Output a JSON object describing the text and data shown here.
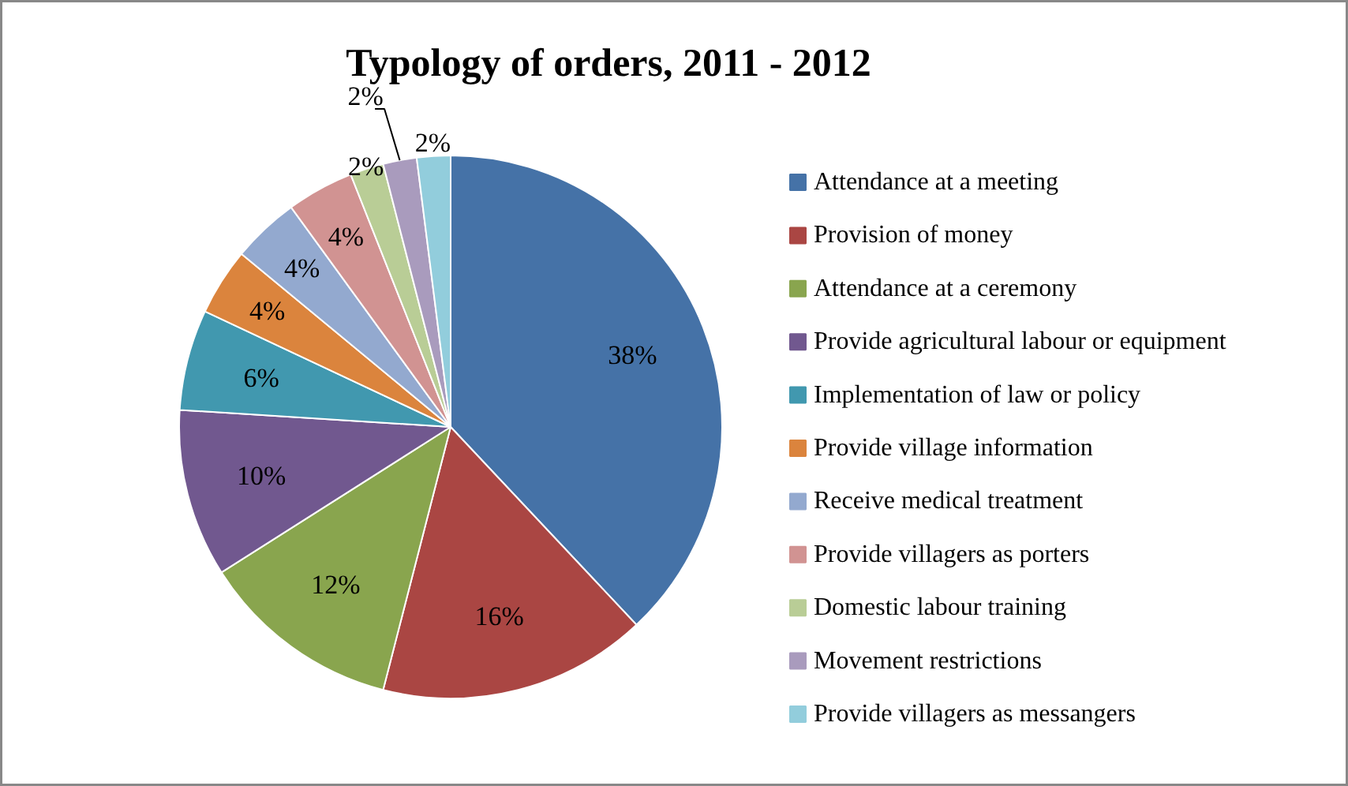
{
  "chart_data": {
    "type": "pie",
    "title": "Typology of orders, 2011 - 2012",
    "categories": [
      "Attendance at a meeting",
      "Provision of money",
      "Attendance at a ceremony",
      "Provide agricultural labour or equipment",
      "Implementation of law or policy",
      "Provide village information",
      "Receive medical treatment",
      "Provide villagers as porters",
      "Domestic labour training",
      "Movement restrictions",
      "Provide villagers as messangers"
    ],
    "values": [
      38,
      16,
      12,
      10,
      6,
      4,
      4,
      4,
      2,
      2,
      2
    ],
    "value_labels": [
      "38%",
      "16%",
      "12%",
      "10%",
      "6%",
      "4%",
      "4%",
      "4%",
      "2%",
      "2%",
      "2%"
    ],
    "colors": [
      "#4572a7",
      "#aa4643",
      "#89a54e",
      "#71588f",
      "#4198af",
      "#db843d",
      "#93a9cf",
      "#d19392",
      "#b9cd96",
      "#a99bbd",
      "#92cddc"
    ],
    "legend": "right"
  }
}
